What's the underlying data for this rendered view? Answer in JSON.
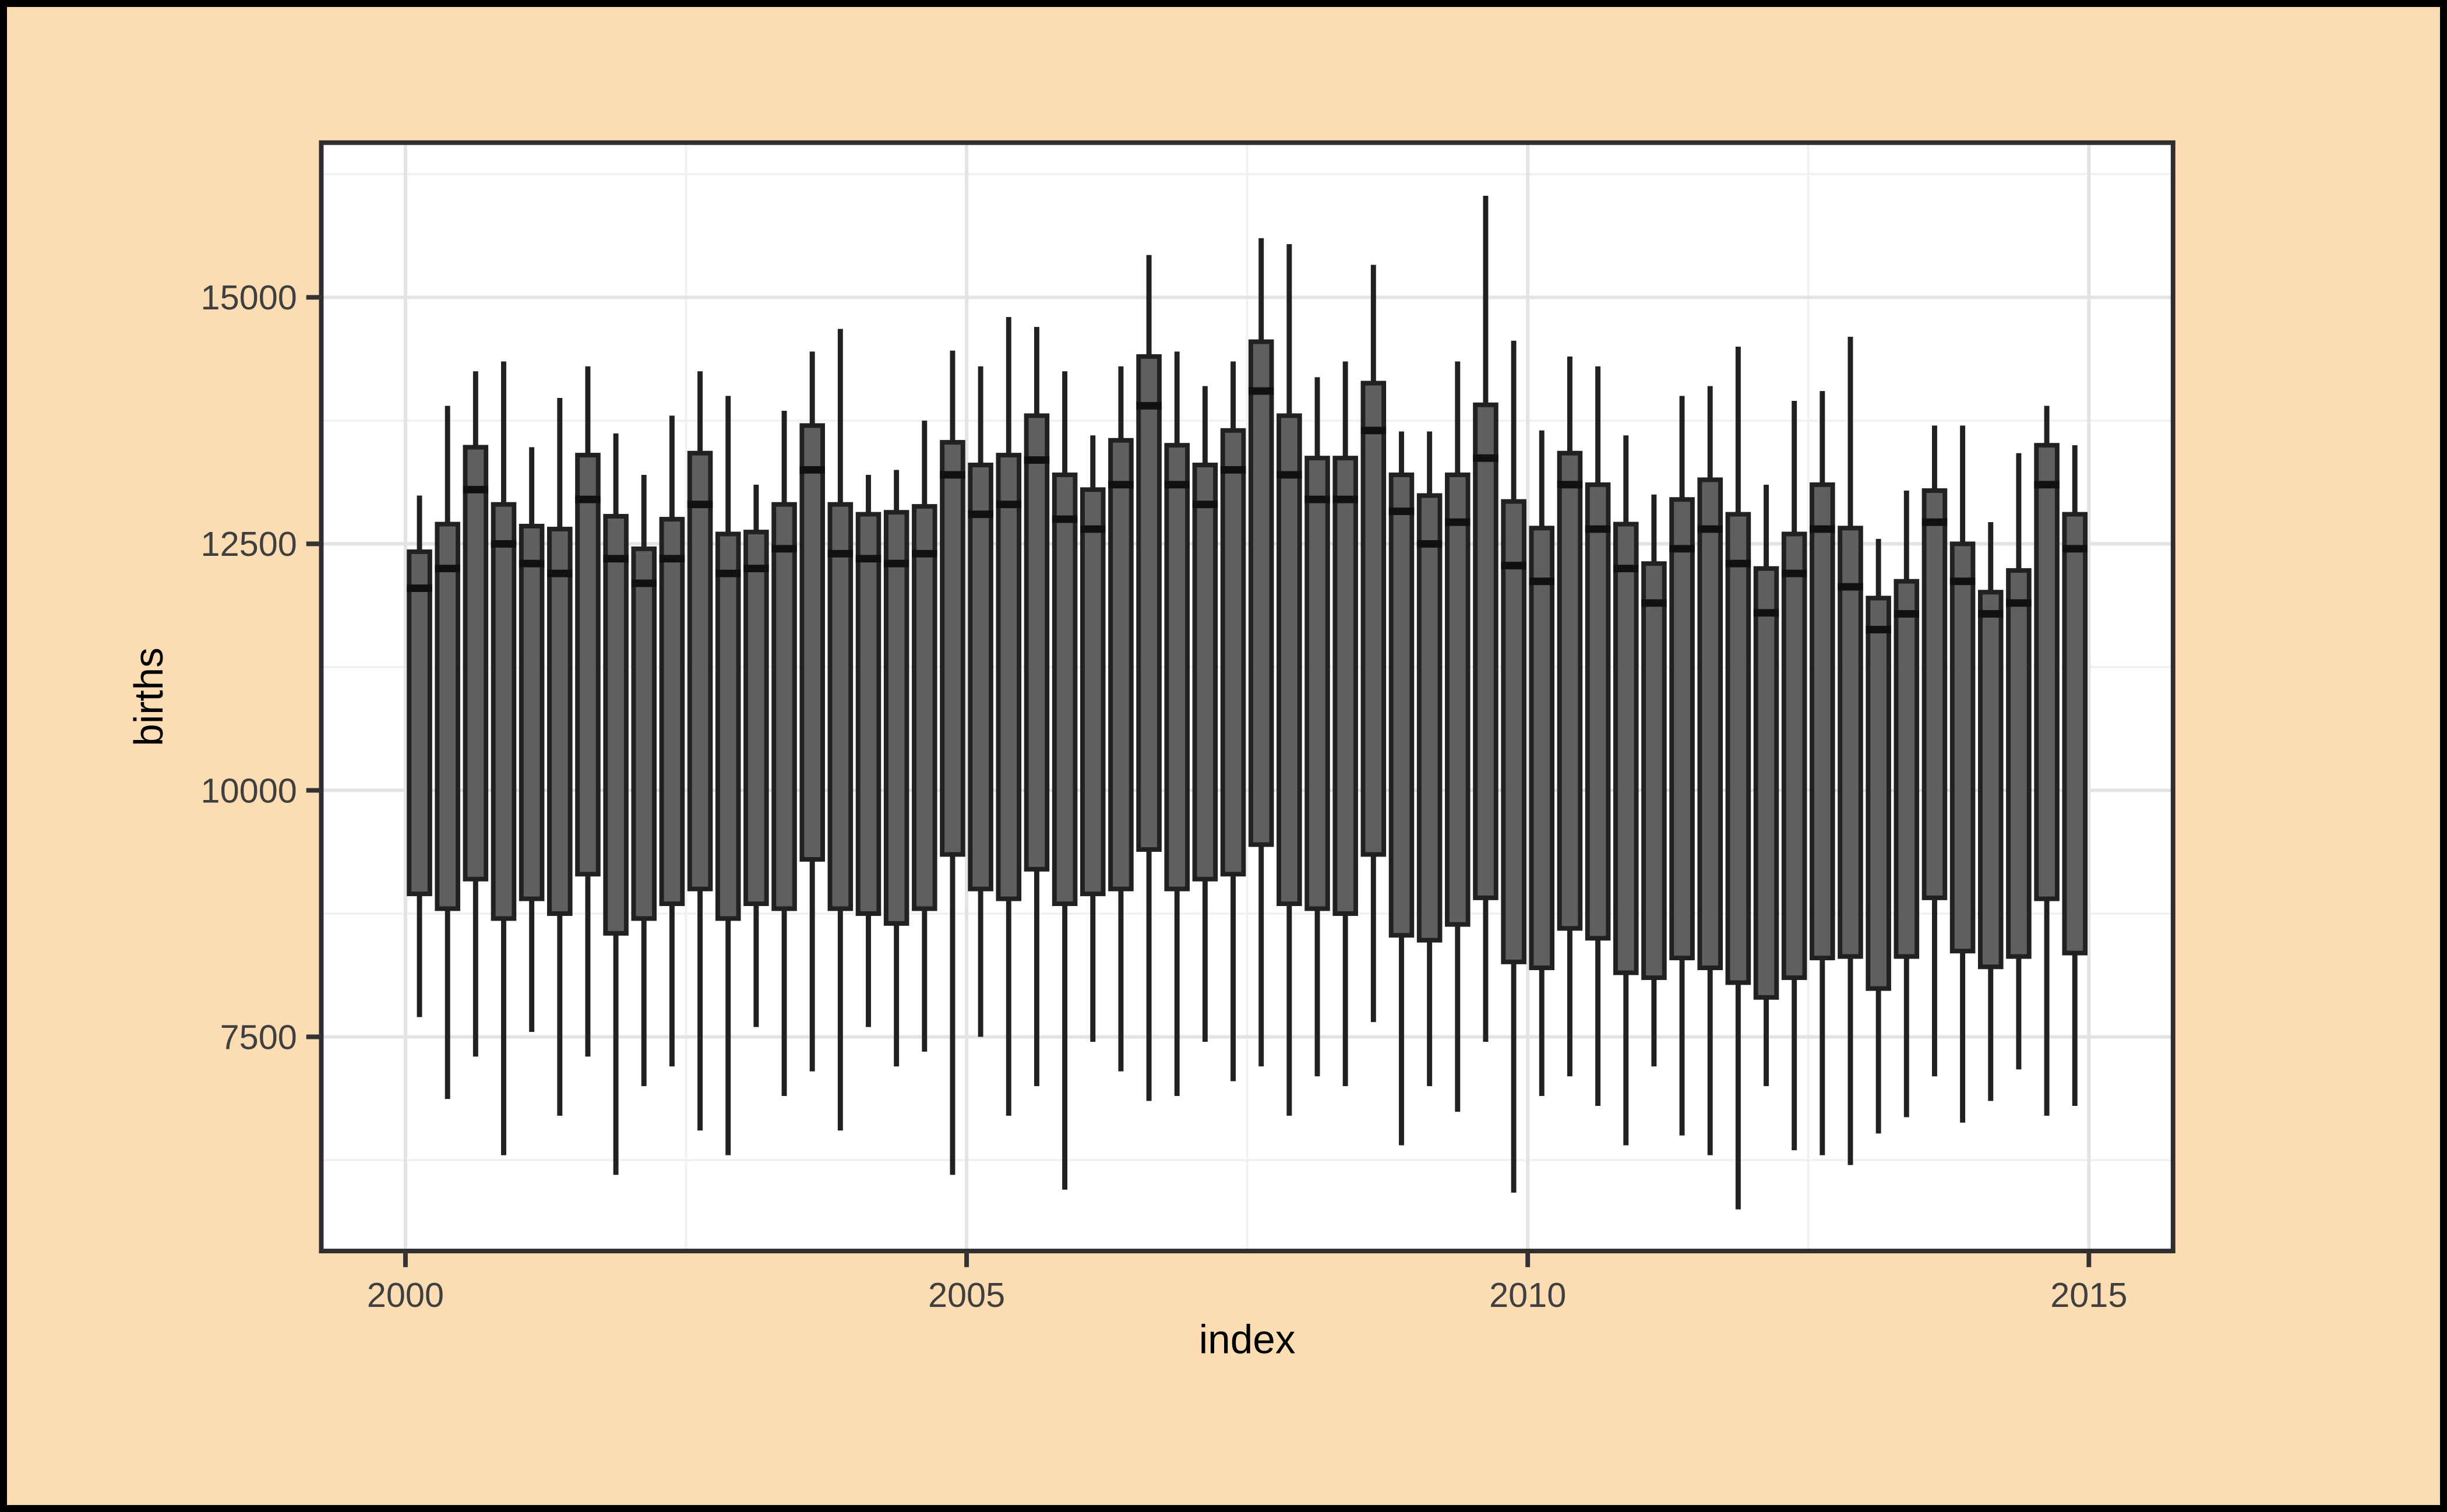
{
  "window": {
    "background_color": "#FCDCB2",
    "frame_color": "#000000"
  },
  "style": {
    "panel_bg": "#FFFFFF",
    "panel_border": "#2E2E2E",
    "grid_major": "#E3E3E3",
    "grid_minor": "#F1F1F1",
    "box_fill": "#5F5F5F",
    "box_stroke": "#212121",
    "median_stroke": "#111111",
    "whisker_stroke": "#212121",
    "axis_tick_color": "#333333",
    "tick_label_color": "#3F3F3F",
    "axis_title_color": "#000000"
  },
  "chart_data": {
    "type": "boxplot",
    "title": "",
    "xlabel": "index",
    "ylabel": "births",
    "legend": "none",
    "grid": "on",
    "x_axis": {
      "range": [
        1999.25,
        2015.75
      ],
      "ticks": [
        {
          "label": "2000",
          "value": 2000
        },
        {
          "label": "2005",
          "value": 2005
        },
        {
          "label": "2010",
          "value": 2010
        },
        {
          "label": "2015",
          "value": 2015
        }
      ],
      "minor_ticks": [
        2002.5,
        2007.5,
        2012.5
      ]
    },
    "y_axis": {
      "range": [
        5328,
        16569
      ],
      "ticks": [
        {
          "label": "7500",
          "value": 7500
        },
        {
          "label": "10000",
          "value": 10000
        },
        {
          "label": "12500",
          "value": 12500
        },
        {
          "label": "15000",
          "value": 15000
        }
      ],
      "minor_ticks": [
        6250,
        8750,
        11250,
        13750,
        16250
      ]
    },
    "box_width_years": 0.185,
    "columns": [
      "x",
      "low",
      "q1",
      "median",
      "q3",
      "high"
    ],
    "boxes": [
      [
        2000.125,
        7700,
        8950,
        12050,
        12420,
        12990
      ],
      [
        2000.375,
        6870,
        8800,
        12250,
        12700,
        13900
      ],
      [
        2000.625,
        7300,
        9100,
        13050,
        13480,
        14250
      ],
      [
        2000.875,
        6300,
        8700,
        12500,
        12900,
        14350
      ],
      [
        2001.125,
        7550,
        8900,
        12300,
        12680,
        13480
      ],
      [
        2001.375,
        6700,
        8750,
        12200,
        12650,
        13980
      ],
      [
        2001.625,
        7300,
        9150,
        12950,
        13400,
        14300
      ],
      [
        2001.875,
        6100,
        8550,
        12350,
        12780,
        13620
      ],
      [
        2002.125,
        7000,
        8700,
        12100,
        12450,
        13200
      ],
      [
        2002.375,
        7200,
        8850,
        12350,
        12750,
        13800
      ],
      [
        2002.625,
        6550,
        9000,
        12900,
        13420,
        14250
      ],
      [
        2002.875,
        6300,
        8700,
        12200,
        12600,
        14000
      ],
      [
        2003.125,
        7600,
        8850,
        12250,
        12620,
        13100
      ],
      [
        2003.375,
        6900,
        8800,
        12450,
        12900,
        13850
      ],
      [
        2003.625,
        7150,
        9300,
        13250,
        13700,
        14450
      ],
      [
        2003.875,
        6550,
        8800,
        12400,
        12900,
        14680
      ],
      [
        2004.125,
        7600,
        8750,
        12350,
        12800,
        13200
      ],
      [
        2004.375,
        7200,
        8650,
        12300,
        12820,
        13250
      ],
      [
        2004.625,
        7350,
        8800,
        12400,
        12880,
        13750
      ],
      [
        2004.875,
        6100,
        9350,
        13200,
        13530,
        14460
      ],
      [
        2005.125,
        7500,
        9000,
        12800,
        13300,
        14300
      ],
      [
        2005.375,
        6700,
        8900,
        12900,
        13400,
        14800
      ],
      [
        2005.625,
        7000,
        9200,
        13350,
        13800,
        14700
      ],
      [
        2005.875,
        5950,
        8850,
        12750,
        13200,
        14250
      ],
      [
        2006.125,
        7450,
        8950,
        12650,
        13050,
        13600
      ],
      [
        2006.375,
        7150,
        9000,
        13100,
        13550,
        14300
      ],
      [
        2006.625,
        6850,
        9400,
        13900,
        14400,
        15430
      ],
      [
        2006.875,
        6900,
        9000,
        13100,
        13500,
        14450
      ],
      [
        2007.125,
        7450,
        9100,
        12900,
        13300,
        14100
      ],
      [
        2007.375,
        7050,
        9150,
        13250,
        13650,
        14350
      ],
      [
        2007.625,
        7200,
        9450,
        14050,
        14550,
        15600
      ],
      [
        2007.875,
        6700,
        8850,
        13200,
        13800,
        15540
      ],
      [
        2008.125,
        7100,
        8800,
        12950,
        13370,
        14190
      ],
      [
        2008.375,
        7000,
        8750,
        12950,
        13370,
        14350
      ],
      [
        2008.625,
        7650,
        9350,
        13650,
        14130,
        15330
      ],
      [
        2008.875,
        6400,
        8530,
        12830,
        13200,
        13640
      ],
      [
        2009.125,
        7000,
        8480,
        12500,
        12990,
        13640
      ],
      [
        2009.375,
        6740,
        8640,
        12720,
        13200,
        14350
      ],
      [
        2009.625,
        7450,
        8910,
        13370,
        13910,
        16030
      ],
      [
        2009.875,
        5920,
        8260,
        12280,
        12930,
        14560
      ],
      [
        2010.125,
        6900,
        8200,
        12120,
        12660,
        13650
      ],
      [
        2010.375,
        7100,
        8600,
        13100,
        13420,
        14400
      ],
      [
        2010.625,
        6800,
        8500,
        12650,
        13100,
        14300
      ],
      [
        2010.875,
        6400,
        8150,
        12250,
        12700,
        13600
      ],
      [
        2011.125,
        7200,
        8100,
        11900,
        12300,
        13000
      ],
      [
        2011.375,
        6500,
        8300,
        12450,
        12950,
        14000
      ],
      [
        2011.625,
        6300,
        8200,
        12650,
        13150,
        14100
      ],
      [
        2011.875,
        5750,
        8050,
        12300,
        12800,
        14500
      ],
      [
        2012.125,
        7000,
        7900,
        11800,
        12250,
        13100
      ],
      [
        2012.375,
        6350,
        8100,
        12200,
        12600,
        13950
      ],
      [
        2012.625,
        6300,
        8300,
        12650,
        13100,
        14050
      ],
      [
        2012.875,
        6200,
        8315,
        12065,
        12660,
        14600
      ],
      [
        2013.125,
        6520,
        7990,
        11630,
        11950,
        12550
      ],
      [
        2013.375,
        6685,
        8315,
        11790,
        12120,
        13040
      ],
      [
        2013.625,
        7100,
        8910,
        12720,
        13040,
        13700
      ],
      [
        2013.875,
        6630,
        8370,
        12120,
        12500,
        13700
      ],
      [
        2014.125,
        6850,
        8210,
        11790,
        12010,
        12720
      ],
      [
        2014.375,
        7170,
        8315,
        11900,
        12230,
        13420
      ],
      [
        2014.625,
        6700,
        8900,
        13100,
        13500,
        13900
      ],
      [
        2014.875,
        6800,
        8350,
        12450,
        12800,
        13500
      ]
    ]
  }
}
